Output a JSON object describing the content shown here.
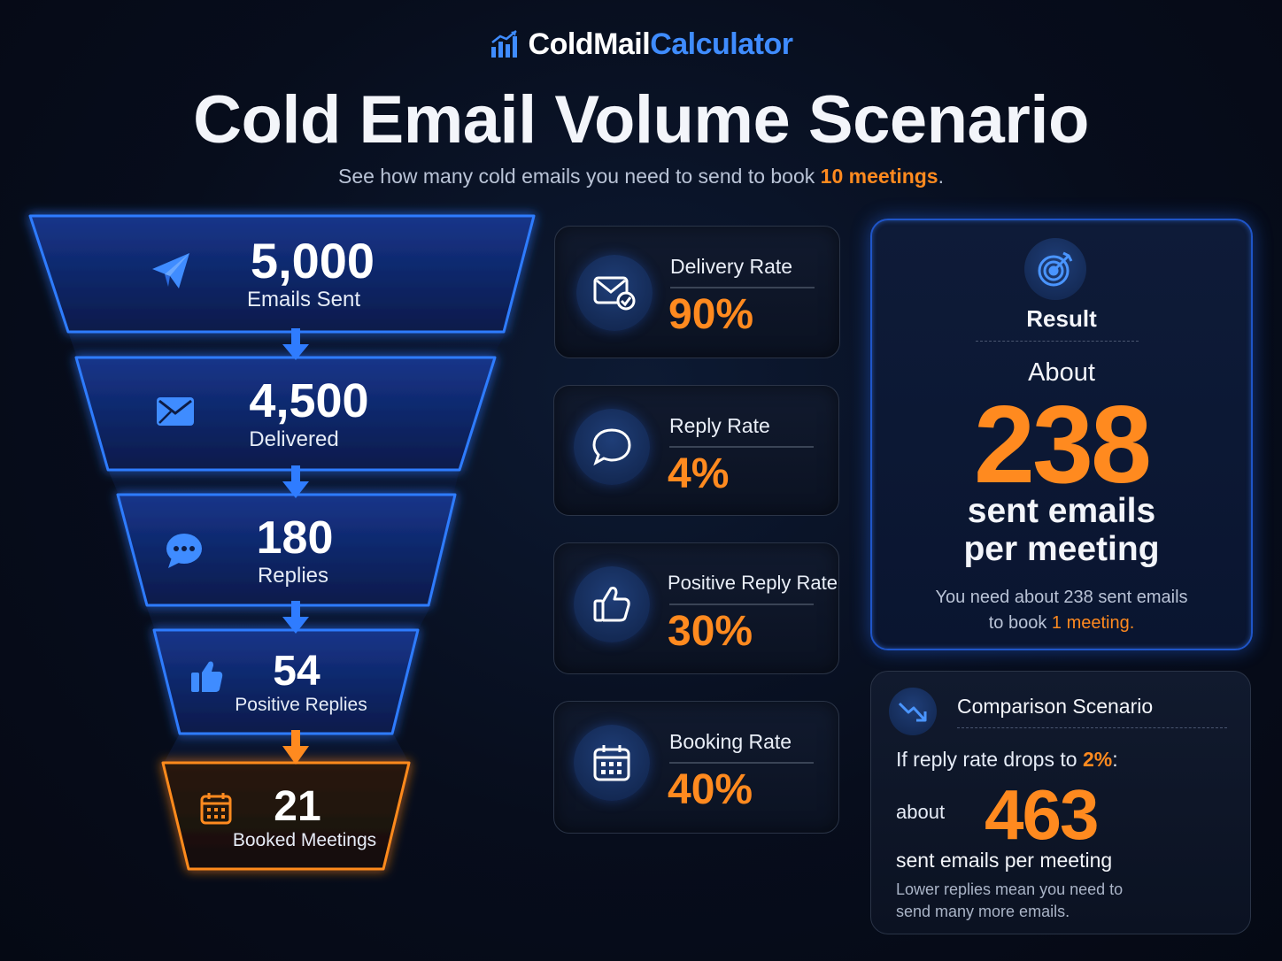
{
  "brand": {
    "part1": "ColdMail",
    "part2": "Calculator"
  },
  "title": "Cold Email Volume Scenario",
  "subtitle": {
    "prefix": "See how many cold emails you need to send to book ",
    "highlight": "10 meetings",
    "suffix": "."
  },
  "funnel": [
    {
      "value": "5,000",
      "label": "Emails Sent",
      "icon": "paper-plane-icon"
    },
    {
      "value": "4,500",
      "label": "Delivered",
      "icon": "envelope-icon"
    },
    {
      "value": "180",
      "label": "Replies",
      "icon": "chat-bubble-icon"
    },
    {
      "value": "54",
      "label": "Positive Replies",
      "icon": "thumbs-up-icon"
    },
    {
      "value": "21",
      "label": "Booked Meetings",
      "icon": "calendar-icon"
    }
  ],
  "metrics": [
    {
      "label": "Delivery Rate",
      "value": "90%",
      "icon": "envelope-check-icon"
    },
    {
      "label": "Reply Rate",
      "value": "4%",
      "icon": "chat-bubble-icon"
    },
    {
      "label": "Positive Reply Rate",
      "value": "30%",
      "icon": "thumbs-up-icon"
    },
    {
      "label": "Booking Rate",
      "value": "40%",
      "icon": "calendar-icon"
    }
  ],
  "result": {
    "title": "Result",
    "about": "About",
    "number": "238",
    "unit_line1": "sent emails",
    "unit_line2": "per meeting",
    "note_line1": "You need about 238 sent emails",
    "note_prefix": "to book ",
    "note_highlight": "1 meeting.",
    "icon": "target-icon"
  },
  "comparison": {
    "title": "Comparison Scenario",
    "cond_prefix": "If reply rate drops to ",
    "cond_highlight": "2%",
    "cond_suffix": ":",
    "about": "about",
    "number": "463",
    "unit": "sent emails per meeting",
    "note_line1": "Lower replies mean you need to",
    "note_line2": "send many more emails.",
    "icon": "trending-down-icon"
  },
  "colors": {
    "accent_blue": "#2f7cff",
    "accent_orange": "#ff8a1f",
    "background": "#070d1c"
  }
}
